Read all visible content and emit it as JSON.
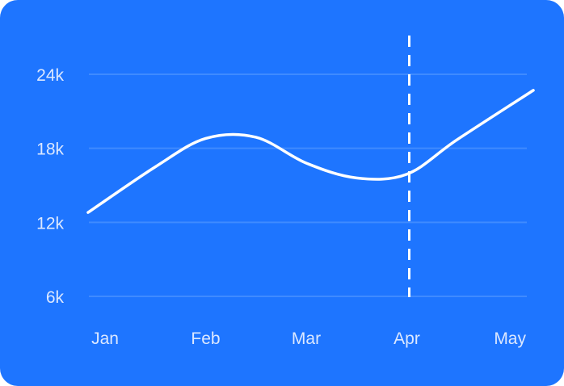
{
  "chart_data": {
    "type": "line",
    "title": "",
    "xlabel": "",
    "ylabel": "",
    "categories": [
      "Jan",
      "Feb",
      "Mar",
      "Apr",
      "May"
    ],
    "y_ticks": [
      "6k",
      "12k",
      "18k",
      "24k"
    ],
    "y_tick_values": [
      6000,
      12000,
      18000,
      24000
    ],
    "ylim": [
      6000,
      24000
    ],
    "series": [
      {
        "x": [
          0,
          0.5,
          1,
          1.5,
          2,
          2.5,
          3,
          3.5,
          4
        ],
        "values": [
          12800,
          16500,
          18800,
          18900,
          16800,
          15600,
          15900,
          18700,
          22700
        ]
      }
    ],
    "marker_line": {
      "category": "Apr",
      "style": "dashed"
    },
    "grid": true,
    "colors": {
      "background": "#1E75FF",
      "line": "#FFFFFF",
      "grid": "#3F8BFF",
      "labels": "#DCE8FF"
    }
  }
}
